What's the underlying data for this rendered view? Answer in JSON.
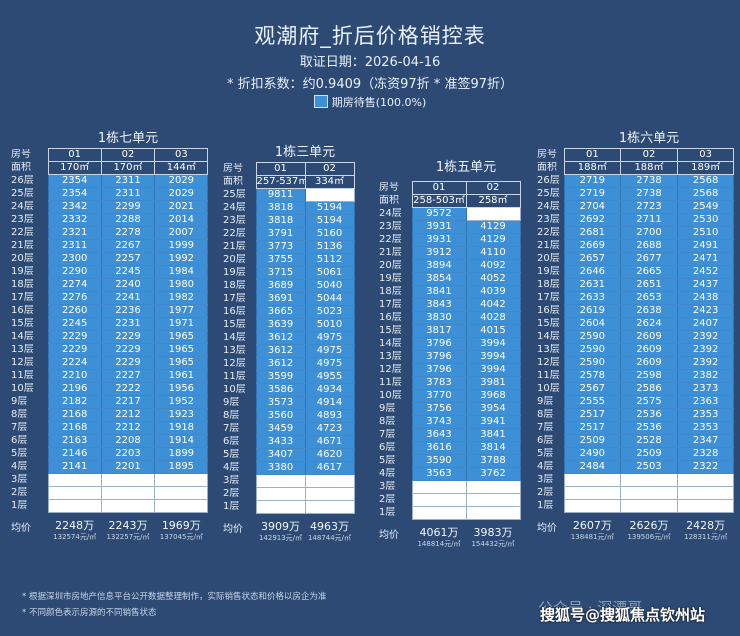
{
  "title": "观潮府_折后价格销控表",
  "date_line": "取证日期：2026-04-16",
  "discount_line": "* 折扣系数：约0.9409（冻资97折 * 准签97折）",
  "legend": {
    "label": "期房待售(100.0%)",
    "color": "#3d8fd6"
  },
  "labels": {
    "room": "房号",
    "area": "面积",
    "avg": "均价"
  },
  "buildings": [
    {
      "name": "1栋七单元",
      "units": [
        "01",
        "02",
        "03"
      ],
      "areas": [
        "170㎡",
        "170㎡",
        "144㎡"
      ],
      "floors": [
        {
          "floor": "26层",
          "prices": [
            "2354",
            "2311",
            "2029"
          ]
        },
        {
          "floor": "25层",
          "prices": [
            "2354",
            "2311",
            "2029"
          ]
        },
        {
          "floor": "24层",
          "prices": [
            "2342",
            "2299",
            "2021"
          ]
        },
        {
          "floor": "23层",
          "prices": [
            "2332",
            "2288",
            "2014"
          ]
        },
        {
          "floor": "22层",
          "prices": [
            "2321",
            "2278",
            "2007"
          ]
        },
        {
          "floor": "21层",
          "prices": [
            "2311",
            "2267",
            "1999"
          ]
        },
        {
          "floor": "20层",
          "prices": [
            "2300",
            "2257",
            "1992"
          ]
        },
        {
          "floor": "19层",
          "prices": [
            "2290",
            "2245",
            "1984"
          ]
        },
        {
          "floor": "18层",
          "prices": [
            "2274",
            "2240",
            "1980"
          ]
        },
        {
          "floor": "17层",
          "prices": [
            "2276",
            "2241",
            "1982"
          ]
        },
        {
          "floor": "16层",
          "prices": [
            "2260",
            "2236",
            "1977"
          ]
        },
        {
          "floor": "15层",
          "prices": [
            "2245",
            "2231",
            "1971"
          ]
        },
        {
          "floor": "14层",
          "prices": [
            "2229",
            "2229",
            "1965"
          ]
        },
        {
          "floor": "13层",
          "prices": [
            "2229",
            "2229",
            "1965"
          ]
        },
        {
          "floor": "12层",
          "prices": [
            "2224",
            "2229",
            "1965"
          ]
        },
        {
          "floor": "11层",
          "prices": [
            "2210",
            "2227",
            "1961"
          ]
        },
        {
          "floor": "10层",
          "prices": [
            "2196",
            "2222",
            "1956"
          ]
        },
        {
          "floor": "9层",
          "prices": [
            "2182",
            "2217",
            "1952"
          ]
        },
        {
          "floor": "8层",
          "prices": [
            "2168",
            "2212",
            "1923"
          ]
        },
        {
          "floor": "7层",
          "prices": [
            "2168",
            "2212",
            "1918"
          ]
        },
        {
          "floor": "6层",
          "prices": [
            "2163",
            "2208",
            "1914"
          ]
        },
        {
          "floor": "5层",
          "prices": [
            "2146",
            "2203",
            "1899"
          ]
        },
        {
          "floor": "4层",
          "prices": [
            "2141",
            "2201",
            "1895"
          ]
        },
        {
          "floor": "3层",
          "prices": [
            "",
            "",
            ""
          ]
        },
        {
          "floor": "2层",
          "prices": [
            "",
            "",
            ""
          ]
        },
        {
          "floor": "1层",
          "prices": [
            "",
            "",
            ""
          ]
        }
      ],
      "avg": [
        {
          "total": "2248万",
          "unit": "132574元/㎡"
        },
        {
          "total": "2243万",
          "unit": "132257元/㎡"
        },
        {
          "total": "1969万",
          "unit": "137045元/㎡"
        }
      ]
    },
    {
      "name": "1栋三单元",
      "units": [
        "01",
        "02"
      ],
      "areas": [
        "257-537㎡",
        "334㎡"
      ],
      "floors": [
        {
          "floor": "25层",
          "prices": [
            "9811",
            ""
          ]
        },
        {
          "floor": "24层",
          "prices": [
            "3818",
            "5194"
          ]
        },
        {
          "floor": "23层",
          "prices": [
            "3818",
            "5194"
          ]
        },
        {
          "floor": "22层",
          "prices": [
            "3791",
            "5160"
          ]
        },
        {
          "floor": "21层",
          "prices": [
            "3773",
            "5136"
          ]
        },
        {
          "floor": "20层",
          "prices": [
            "3755",
            "5112"
          ]
        },
        {
          "floor": "19层",
          "prices": [
            "3715",
            "5061"
          ]
        },
        {
          "floor": "18层",
          "prices": [
            "3689",
            "5040"
          ]
        },
        {
          "floor": "17层",
          "prices": [
            "3691",
            "5044"
          ]
        },
        {
          "floor": "16层",
          "prices": [
            "3665",
            "5023"
          ]
        },
        {
          "floor": "15层",
          "prices": [
            "3639",
            "5010"
          ]
        },
        {
          "floor": "14层",
          "prices": [
            "3612",
            "4975"
          ]
        },
        {
          "floor": "13层",
          "prices": [
            "3612",
            "4975"
          ]
        },
        {
          "floor": "12层",
          "prices": [
            "3612",
            "4975"
          ]
        },
        {
          "floor": "11层",
          "prices": [
            "3599",
            "4955"
          ]
        },
        {
          "floor": "10层",
          "prices": [
            "3586",
            "4934"
          ]
        },
        {
          "floor": "9层",
          "prices": [
            "3573",
            "4914"
          ]
        },
        {
          "floor": "8层",
          "prices": [
            "3560",
            "4893"
          ]
        },
        {
          "floor": "7层",
          "prices": [
            "3459",
            "4723"
          ]
        },
        {
          "floor": "6层",
          "prices": [
            "3433",
            "4671"
          ]
        },
        {
          "floor": "5层",
          "prices": [
            "3407",
            "4620"
          ]
        },
        {
          "floor": "4层",
          "prices": [
            "3380",
            "4617"
          ]
        },
        {
          "floor": "3层",
          "prices": [
            "",
            ""
          ]
        },
        {
          "floor": "2层",
          "prices": [
            "",
            ""
          ]
        },
        {
          "floor": "1层",
          "prices": [
            "",
            ""
          ]
        }
      ],
      "avg": [
        {
          "total": "3909万",
          "unit": "142913元/㎡"
        },
        {
          "total": "4963万",
          "unit": "148744元/㎡"
        }
      ]
    },
    {
      "name": "1栋五单元",
      "units": [
        "01",
        "02"
      ],
      "areas": [
        "258-503㎡",
        "258㎡"
      ],
      "floors": [
        {
          "floor": "24层",
          "prices": [
            "9572",
            ""
          ]
        },
        {
          "floor": "23层",
          "prices": [
            "3931",
            "4129"
          ]
        },
        {
          "floor": "22层",
          "prices": [
            "3931",
            "4129"
          ]
        },
        {
          "floor": "21层",
          "prices": [
            "3912",
            "4110"
          ]
        },
        {
          "floor": "20层",
          "prices": [
            "3894",
            "4092"
          ]
        },
        {
          "floor": "19层",
          "prices": [
            "3854",
            "4052"
          ]
        },
        {
          "floor": "18层",
          "prices": [
            "3841",
            "4039"
          ]
        },
        {
          "floor": "17层",
          "prices": [
            "3843",
            "4042"
          ]
        },
        {
          "floor": "16层",
          "prices": [
            "3830",
            "4028"
          ]
        },
        {
          "floor": "15层",
          "prices": [
            "3817",
            "4015"
          ]
        },
        {
          "floor": "14层",
          "prices": [
            "3796",
            "3994"
          ]
        },
        {
          "floor": "13层",
          "prices": [
            "3796",
            "3994"
          ]
        },
        {
          "floor": "12层",
          "prices": [
            "3796",
            "3994"
          ]
        },
        {
          "floor": "11层",
          "prices": [
            "3783",
            "3981"
          ]
        },
        {
          "floor": "10层",
          "prices": [
            "3770",
            "3968"
          ]
        },
        {
          "floor": "9层",
          "prices": [
            "3756",
            "3954"
          ]
        },
        {
          "floor": "8层",
          "prices": [
            "3743",
            "3941"
          ]
        },
        {
          "floor": "7层",
          "prices": [
            "3643",
            "3841"
          ]
        },
        {
          "floor": "6层",
          "prices": [
            "3616",
            "3814"
          ]
        },
        {
          "floor": "5层",
          "prices": [
            "3590",
            "3788"
          ]
        },
        {
          "floor": "4层",
          "prices": [
            "3563",
            "3762"
          ]
        },
        {
          "floor": "3层",
          "prices": [
            "",
            ""
          ]
        },
        {
          "floor": "2层",
          "prices": [
            "",
            ""
          ]
        },
        {
          "floor": "1层",
          "prices": [
            "",
            ""
          ]
        }
      ],
      "avg": [
        {
          "total": "4061万",
          "unit": "148814元/㎡"
        },
        {
          "total": "3983万",
          "unit": "154432元/㎡"
        }
      ]
    },
    {
      "name": "1栋六单元",
      "units": [
        "01",
        "02",
        "03"
      ],
      "areas": [
        "188㎡",
        "188㎡",
        "189㎡"
      ],
      "floors": [
        {
          "floor": "26层",
          "prices": [
            "2719",
            "2738",
            "2568"
          ]
        },
        {
          "floor": "25层",
          "prices": [
            "2719",
            "2738",
            "2568"
          ]
        },
        {
          "floor": "24层",
          "prices": [
            "2704",
            "2723",
            "2549"
          ]
        },
        {
          "floor": "23层",
          "prices": [
            "2692",
            "2711",
            "2530"
          ]
        },
        {
          "floor": "22层",
          "prices": [
            "2681",
            "2700",
            "2510"
          ]
        },
        {
          "floor": "21层",
          "prices": [
            "2669",
            "2688",
            "2491"
          ]
        },
        {
          "floor": "20层",
          "prices": [
            "2657",
            "2677",
            "2471"
          ]
        },
        {
          "floor": "19层",
          "prices": [
            "2646",
            "2665",
            "2452"
          ]
        },
        {
          "floor": "18层",
          "prices": [
            "2631",
            "2651",
            "2437"
          ]
        },
        {
          "floor": "17层",
          "prices": [
            "2633",
            "2653",
            "2438"
          ]
        },
        {
          "floor": "16层",
          "prices": [
            "2619",
            "2638",
            "2423"
          ]
        },
        {
          "floor": "15层",
          "prices": [
            "2604",
            "2624",
            "2407"
          ]
        },
        {
          "floor": "14层",
          "prices": [
            "2590",
            "2609",
            "2392"
          ]
        },
        {
          "floor": "13层",
          "prices": [
            "2590",
            "2609",
            "2392"
          ]
        },
        {
          "floor": "12层",
          "prices": [
            "2590",
            "2609",
            "2392"
          ]
        },
        {
          "floor": "11层",
          "prices": [
            "2578",
            "2598",
            "2382"
          ]
        },
        {
          "floor": "10层",
          "prices": [
            "2567",
            "2586",
            "2373"
          ]
        },
        {
          "floor": "9层",
          "prices": [
            "2555",
            "2575",
            "2363"
          ]
        },
        {
          "floor": "8层",
          "prices": [
            "2517",
            "2536",
            "2353"
          ]
        },
        {
          "floor": "7层",
          "prices": [
            "2517",
            "2536",
            "2353"
          ]
        },
        {
          "floor": "6层",
          "prices": [
            "2509",
            "2528",
            "2347"
          ]
        },
        {
          "floor": "5层",
          "prices": [
            "2490",
            "2509",
            "2328"
          ]
        },
        {
          "floor": "4层",
          "prices": [
            "2484",
            "2503",
            "2322"
          ]
        },
        {
          "floor": "3层",
          "prices": [
            "",
            "",
            ""
          ]
        },
        {
          "floor": "2层",
          "prices": [
            "",
            "",
            ""
          ]
        },
        {
          "floor": "1层",
          "prices": [
            "",
            "",
            ""
          ]
        }
      ],
      "avg": [
        {
          "total": "2607万",
          "unit": "138481元/㎡"
        },
        {
          "total": "2626万",
          "unit": "139506元/㎡"
        },
        {
          "total": "2428万",
          "unit": "128311元/㎡"
        }
      ]
    }
  ],
  "notes": [
    "* 根据深圳市房地产信息平台公开数据整理制作，实际销售状态和价格以房企为准",
    "* 不同颜色表示房源的不同销售状态"
  ],
  "watermark_faint": "公众号 · 深漂哥",
  "watermark_main": "搜狐号@搜狐焦点钦州站"
}
